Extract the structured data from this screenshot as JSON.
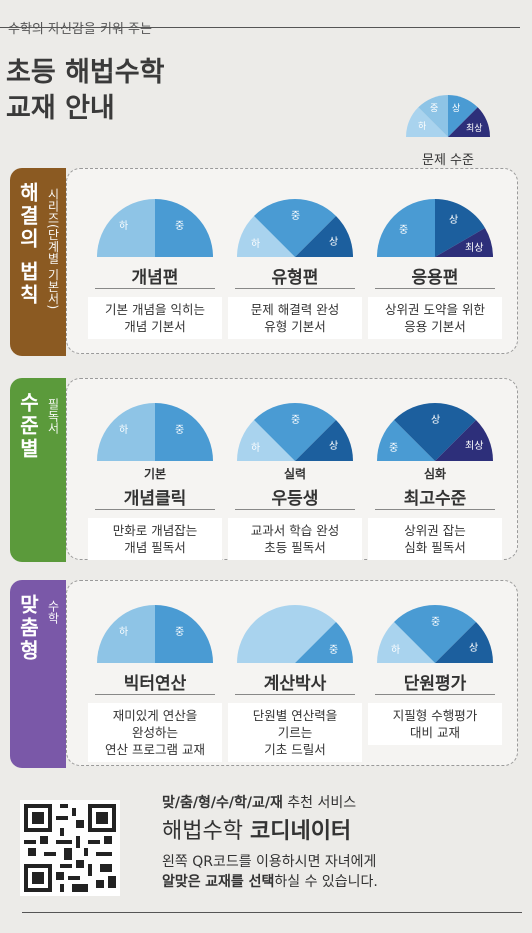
{
  "header": {
    "subtitle": "수학의 자신감을 키워 주는",
    "title_line1": "초등 해법수학",
    "title_line2": "교재 안내"
  },
  "legend": {
    "caption": "문제 수준",
    "levels": [
      "하",
      "중",
      "상",
      "최상"
    ]
  },
  "colors": {
    "lowest": "#8ec4e6",
    "low": "#a9d3ee",
    "mid": "#4a9bd3",
    "high": "#1c5f9e",
    "top": "#2d2f7a",
    "brown": "#8b5a22",
    "green": "#5b9a3b",
    "purple": "#7a58a8"
  },
  "sections": [
    {
      "title": "해결의 법칙",
      "subtitle": "시리즈(단계별 기본서)",
      "books": [
        {
          "name": "개념편",
          "tier": "",
          "desc_line1": "기본 개념을 익히는",
          "desc_line2": "개념 기본서",
          "desc_line3": "",
          "labels": [
            "하",
            "중"
          ]
        },
        {
          "name": "유형편",
          "tier": "",
          "desc_line1": "문제 해결력 완성",
          "desc_line2": "유형 기본서",
          "desc_line3": "",
          "labels": [
            "하",
            "중",
            "상"
          ]
        },
        {
          "name": "응용편",
          "tier": "",
          "desc_line1": "상위권 도약을 위한",
          "desc_line2": "응용 기본서",
          "desc_line3": "",
          "labels": [
            "중",
            "상",
            "최상"
          ]
        }
      ]
    },
    {
      "title": "수준별",
      "subtitle": "필독서",
      "books": [
        {
          "name": "개념클릭",
          "tier": "기본",
          "desc_line1": "만화로 개념잡는",
          "desc_line2": "개념 필독서",
          "desc_line3": "",
          "labels": [
            "하",
            "중"
          ]
        },
        {
          "name": "우등생",
          "tier": "실력",
          "desc_line1": "교과서 학습 완성",
          "desc_line2": "초등 필독서",
          "desc_line3": "",
          "labels": [
            "하",
            "중",
            "상"
          ]
        },
        {
          "name": "최고수준",
          "tier": "심화",
          "desc_line1": "상위권 잡는",
          "desc_line2": "심화 필독서",
          "desc_line3": "",
          "labels": [
            "중",
            "상",
            "최상"
          ]
        }
      ]
    },
    {
      "title": "맞춤형",
      "subtitle": "수학",
      "books": [
        {
          "name": "빅터연산",
          "tier": "",
          "desc_line1": "재미있게 연산을",
          "desc_line2": "완성하는",
          "desc_line3": "연산 프로그램 교재",
          "labels": [
            "하",
            "중"
          ]
        },
        {
          "name": "계산박사",
          "tier": "",
          "desc_line1": "단원별 연산력을",
          "desc_line2": "기르는",
          "desc_line3": "기초 드릴서",
          "labels": [
            "",
            "중"
          ]
        },
        {
          "name": "단원평가",
          "tier": "",
          "desc_line1": "지필형 수행평가",
          "desc_line2": "대비 교재",
          "desc_line3": "",
          "labels": [
            "하",
            "중",
            "상"
          ]
        }
      ]
    }
  ],
  "service": {
    "head_bold": "맞/춤/형/수/학/교/재",
    "head_rest": "추천 서비스",
    "title_regular": "해법수학",
    "title_bold": "코디네이터",
    "desc_line1": "왼쪽 QR코드를 이용하시면 자녀에게",
    "desc_bold1": "알맞은",
    "desc_bold2": "교재를 선택",
    "desc_rest": "하실 수 있습니다."
  }
}
